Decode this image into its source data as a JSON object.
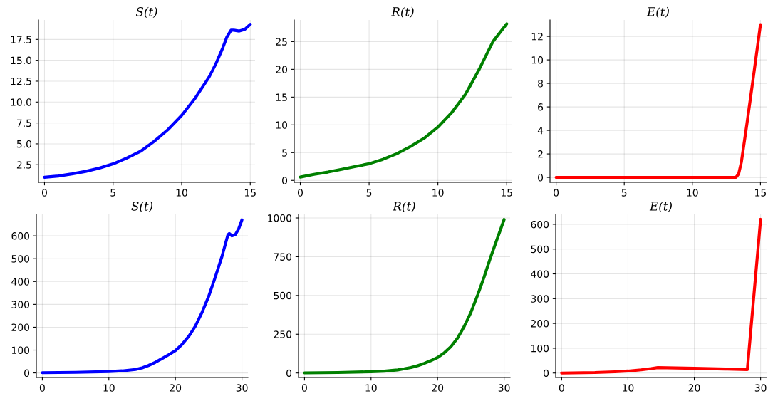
{
  "chart_data": [
    {
      "type": "line",
      "title": "S(t)",
      "grid": true,
      "xlim": [
        -0.44,
        15.35
      ],
      "ylim": [
        0.39,
        19.83
      ],
      "xticks": [
        0,
        5,
        10,
        15
      ],
      "yticks": [
        2.5,
        {
          "value": 5,
          "label": "5.0"
        },
        {
          "value": 7.5,
          "label": "7.5"
        },
        {
          "value": 10,
          "label": "10.0"
        },
        {
          "value": 12.5,
          "label": "12.5"
        },
        {
          "value": 15,
          "label": "15.0"
        },
        {
          "value": 17.5,
          "label": "17.5"
        }
      ],
      "x": [
        0,
        1,
        2,
        3,
        4,
        5,
        6,
        7,
        8,
        9,
        10,
        11,
        12,
        12.5,
        13,
        13.3,
        13.6,
        13.8,
        14.2,
        14.6,
        15
      ],
      "series": [
        {
          "color": "#0000ff",
          "values": [
            1.0,
            1.15,
            1.4,
            1.7,
            2.1,
            2.6,
            3.3,
            4.1,
            5.3,
            6.7,
            8.4,
            10.5,
            13.0,
            14.6,
            16.5,
            17.8,
            18.6,
            18.6,
            18.5,
            18.7,
            19.3
          ]
        }
      ]
    },
    {
      "type": "line",
      "title": "R(t)",
      "grid": true,
      "xlim": [
        -0.44,
        15.35
      ],
      "ylim": [
        -0.35,
        28.9
      ],
      "xticks": [
        0,
        5,
        10,
        15
      ],
      "yticks": [
        0,
        5,
        10,
        15,
        20,
        25
      ],
      "x": [
        0,
        1,
        2,
        3,
        4,
        5,
        6,
        7,
        8,
        9,
        10,
        11,
        12,
        13,
        13.5,
        14,
        15
      ],
      "series": [
        {
          "color": "#008000",
          "values": [
            0.6,
            1.1,
            1.5,
            2.0,
            2.5,
            3.0,
            3.8,
            4.8,
            6.1,
            7.6,
            9.6,
            12.2,
            15.5,
            20,
            22.5,
            25,
            28.2
          ]
        }
      ]
    },
    {
      "type": "line",
      "title": "E(t)",
      "grid": true,
      "xlim": [
        -0.45,
        15.45
      ],
      "ylim": [
        -0.42,
        13.4
      ],
      "xticks": [
        0,
        5,
        10,
        15
      ],
      "yticks": [
        0,
        2,
        4,
        6,
        8,
        10,
        12
      ],
      "x": [
        0,
        5,
        10,
        13.2,
        13.4,
        13.6,
        14,
        14.5,
        15
      ],
      "series": [
        {
          "color": "#ff0000",
          "values": [
            0,
            0,
            0,
            0,
            0.3,
            1.3,
            4.5,
            8.7,
            13.0
          ]
        }
      ]
    },
    {
      "type": "line",
      "title": "S(t)",
      "grid": true,
      "xlim": [
        -0.9,
        30.9
      ],
      "ylim": [
        -20,
        694
      ],
      "xticks": [
        0,
        10,
        20,
        30
      ],
      "yticks": [
        0,
        100,
        200,
        300,
        400,
        500,
        600
      ],
      "x": [
        0,
        5,
        10,
        12,
        14,
        15,
        16,
        17,
        18,
        19,
        20,
        21,
        22,
        23,
        24,
        25,
        26,
        27,
        27.9,
        28.1,
        28.5,
        29,
        29.5,
        30
      ],
      "series": [
        {
          "color": "#0000ff",
          "values": [
            1,
            2.5,
            6,
            9,
            15,
            22,
            33,
            47,
            63,
            80,
            98,
            125,
            160,
            205,
            265,
            335,
            420,
            510,
            605,
            610,
            600,
            605,
            630,
            670
          ]
        }
      ]
    },
    {
      "type": "line",
      "title": "R(t)",
      "grid": true,
      "xlim": [
        -0.9,
        30.9
      ],
      "ylim": [
        -29,
        1023
      ],
      "xticks": [
        0,
        10,
        20,
        30
      ],
      "yticks": [
        0,
        250,
        500,
        750,
        1000
      ],
      "x": [
        0,
        5,
        10,
        12,
        14,
        15,
        16,
        17,
        18,
        19,
        20,
        21,
        22,
        23,
        24,
        25,
        26,
        27,
        28,
        29,
        30
      ],
      "series": [
        {
          "color": "#008000",
          "values": [
            1,
            3,
            8,
            12,
            20,
            27,
            35,
            47,
            62,
            80,
            100,
            130,
            170,
            225,
            300,
            390,
            500,
            620,
            750,
            870,
            990
          ]
        }
      ]
    },
    {
      "type": "line",
      "title": "E(t)",
      "grid": true,
      "xlim": [
        -0.9,
        30.9
      ],
      "ylim": [
        -18,
        640
      ],
      "xticks": [
        0,
        10,
        20,
        30
      ],
      "yticks": [
        0,
        100,
        200,
        300,
        400,
        500,
        600
      ],
      "x": [
        0,
        5,
        8,
        10,
        12,
        13.5,
        14.5,
        20,
        25,
        28,
        30
      ],
      "series": [
        {
          "color": "#ff0000",
          "values": [
            0,
            2,
            5,
            8,
            13,
            18,
            22,
            19,
            16,
            14,
            620
          ]
        }
      ]
    }
  ]
}
